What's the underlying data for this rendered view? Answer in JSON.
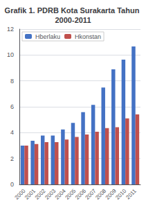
{
  "chart_data": {
    "type": "bar",
    "title": "Grafik 1. PDRB Kota Surakarta Tahun 2000-2011",
    "categories": [
      "2000",
      "2001",
      "2002",
      "2003",
      "2004",
      "2005",
      "2006",
      "2007",
      "2008",
      "2009",
      "2010",
      "2011"
    ],
    "series": [
      {
        "name": "Hberlaku",
        "color": "#4472C4",
        "values": [
          2.99826231,
          3.37288096,
          3.77211768,
          3.77211768,
          4.25184559,
          4.75645953,
          5.58577664,
          6.14811285,
          7.48180686,
          8.88869424,
          9.64111657,
          10.66197114
        ]
      },
      {
        "name": "Hkonstan",
        "color": "#C0504D",
        "values": [
          3.00026111,
          3.11566899,
          3.26853964,
          3.26853964,
          3.46827694,
          3.66937345,
          3.85816867,
          4.06732893,
          4.34934293,
          4.41787165,
          5.10566815,
          5.41181351
        ]
      }
    ],
    "ylim": [
      0,
      12
    ],
    "yticks": [
      0,
      2,
      4,
      6,
      8,
      10,
      12
    ],
    "grid": true,
    "legend": "upper left"
  }
}
